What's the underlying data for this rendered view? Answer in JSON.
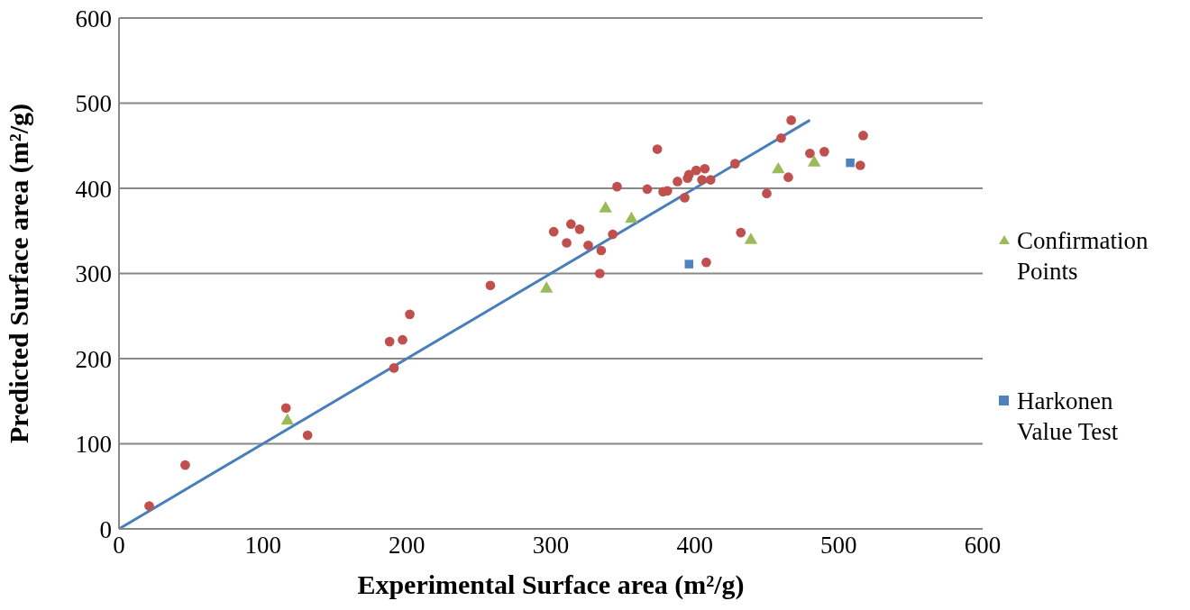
{
  "chart_data": {
    "type": "scatter",
    "xlabel": "Experimental Surface area (m²/g)",
    "ylabel": "Predicted Surface area (m²/g)",
    "xlim": [
      0,
      600
    ],
    "ylim": [
      0,
      600
    ],
    "xticks": [
      0,
      100,
      200,
      300,
      400,
      500,
      600
    ],
    "yticks": [
      0,
      100,
      200,
      300,
      400,
      500,
      600
    ],
    "grid": "y",
    "legend": "right",
    "series": [
      {
        "color": "#c0504d",
        "marker": "circle",
        "x": [
          21,
          46,
          116,
          131,
          188,
          197,
          202,
          191,
          258,
          302,
          311,
          314,
          320,
          326,
          335,
          334,
          343,
          346,
          367,
          374,
          378,
          381,
          388,
          393,
          395,
          396,
          401,
          407,
          405,
          411,
          408,
          428,
          432,
          450,
          460,
          465,
          467,
          480,
          490,
          515,
          517
        ],
        "values": [
          27,
          75,
          142,
          110,
          220,
          222,
          252,
          189,
          286,
          349,
          336,
          358,
          352,
          333,
          327,
          300,
          346,
          402,
          399,
          446,
          396,
          397,
          408,
          389,
          412,
          416,
          421,
          423,
          410,
          410,
          313,
          429,
          348,
          394,
          459,
          413,
          480,
          441,
          443,
          427,
          462
        ]
      },
      {
        "name": "Confirmation Points",
        "color": "#9bbb59",
        "marker": "triangle",
        "x": [
          117,
          297,
          338,
          356,
          439,
          458,
          483
        ],
        "values": [
          127,
          282,
          376,
          364,
          339,
          422,
          430
        ]
      },
      {
        "name": "Harkonen Value Test",
        "color": "#4f81bd",
        "marker": "square",
        "x": [
          396,
          508
        ],
        "values": [
          311,
          430
        ]
      },
      {
        "type": "line",
        "color": "#4a7ebb",
        "marker": "none",
        "x": [
          0,
          480
        ],
        "values": [
          0,
          480
        ]
      }
    ]
  }
}
